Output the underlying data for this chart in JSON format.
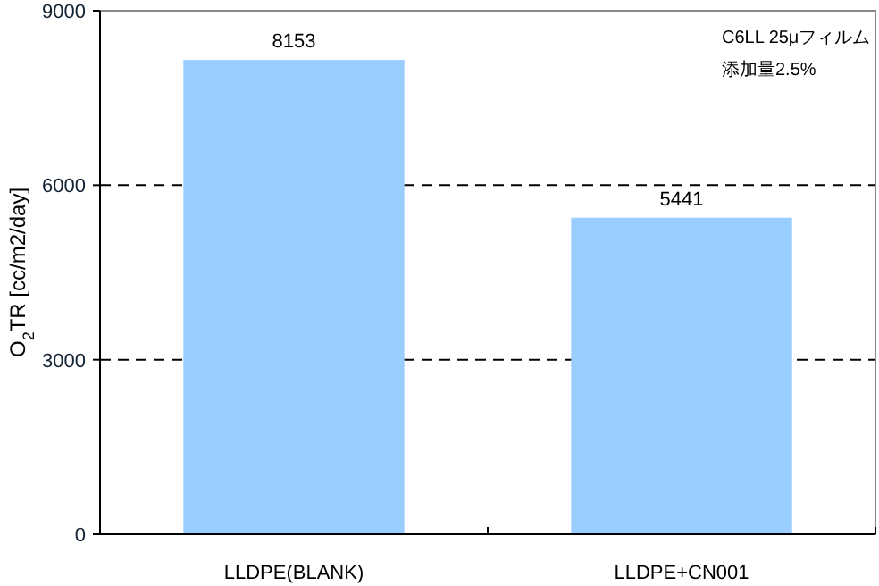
{
  "chart_data": {
    "type": "bar",
    "ylabel": "O$_{2}$TR [cc/m2/day]",
    "categories": [
      "LLDPE(BLANK)",
      "LLDPE+CN001"
    ],
    "values": [
      8153,
      5441
    ],
    "color": "#99ccff",
    "ylim": [
      0,
      9000
    ],
    "yticks": [
      0,
      3000,
      6000,
      9000
    ],
    "grid": "y",
    "data_labels": true,
    "annotations": [
      "C6LL 25μフィルム",
      "添加量2.5%"
    ]
  }
}
